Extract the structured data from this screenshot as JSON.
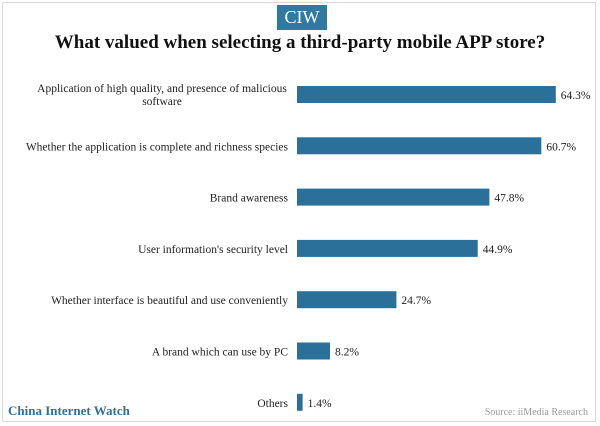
{
  "logo": "CIW",
  "colors": {
    "bar": "#2a7099",
    "logo_bg": "#2f7a9e",
    "brand": "#2f6f98"
  },
  "footer": {
    "brand": "China Internet Watch",
    "source": "Source: iiMedia Research"
  },
  "chart_data": {
    "type": "bar",
    "orientation": "horizontal",
    "title": "What valued when selecting a third-party mobile APP store?",
    "categories": [
      [
        "Application of high quality, and presence of malicious",
        "software"
      ],
      [
        "Whether the application is complete and richness species"
      ],
      [
        "Brand awareness"
      ],
      [
        "User information's security level"
      ],
      [
        "Whether interface is beautiful and use conveniently"
      ],
      [
        "A brand which can use by PC"
      ],
      [
        "Others"
      ]
    ],
    "values": [
      64.3,
      60.7,
      47.8,
      44.9,
      24.7,
      8.2,
      1.4
    ],
    "value_labels": [
      "64.3%",
      "60.7%",
      "47.8%",
      "44.9%",
      "24.7%",
      "8.2%",
      "1.4%"
    ],
    "unit": "%",
    "xlim": [
      0,
      65
    ],
    "grid": false,
    "legend": "none"
  }
}
